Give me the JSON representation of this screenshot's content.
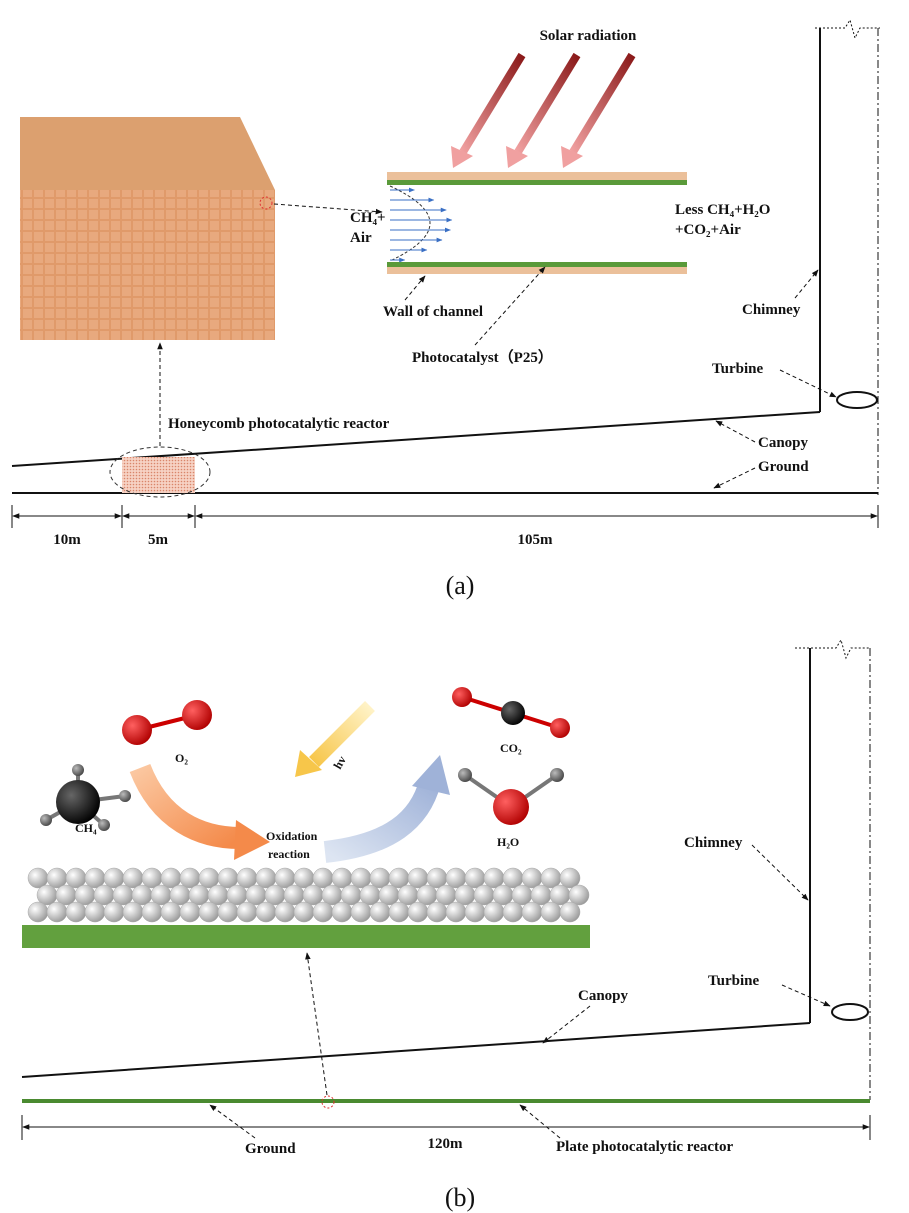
{
  "panel_a": {
    "solar_radiation": "Solar radiation",
    "inlet": [
      "CH₄+",
      "Air"
    ],
    "outlet": [
      "Less CH₄+H₂O",
      "+CO₂+Air"
    ],
    "wall_label": "Wall of channel",
    "photocatalyst_label": "Photocatalyst（P25）",
    "chimney": "Chimney",
    "turbine": "Turbine",
    "reactor_label": "Honeycomb photocatalytic reactor",
    "canopy": "Canopy",
    "ground": "Ground",
    "dimensions": [
      "10m",
      "5m",
      "105m"
    ],
    "caption": "(a)"
  },
  "panel_b": {
    "o2": "O₂",
    "ch4": "CH₄",
    "hv": "hv",
    "co2": "CO₂",
    "h2o": "H₂O",
    "reaction": [
      "Oxidation",
      "reaction"
    ],
    "chimney": "Chimney",
    "turbine": "Turbine",
    "canopy": "Canopy",
    "ground": "Ground",
    "dimension": "120m",
    "reactor_label": "Plate photocatalytic reactor",
    "caption": "(b)"
  }
}
